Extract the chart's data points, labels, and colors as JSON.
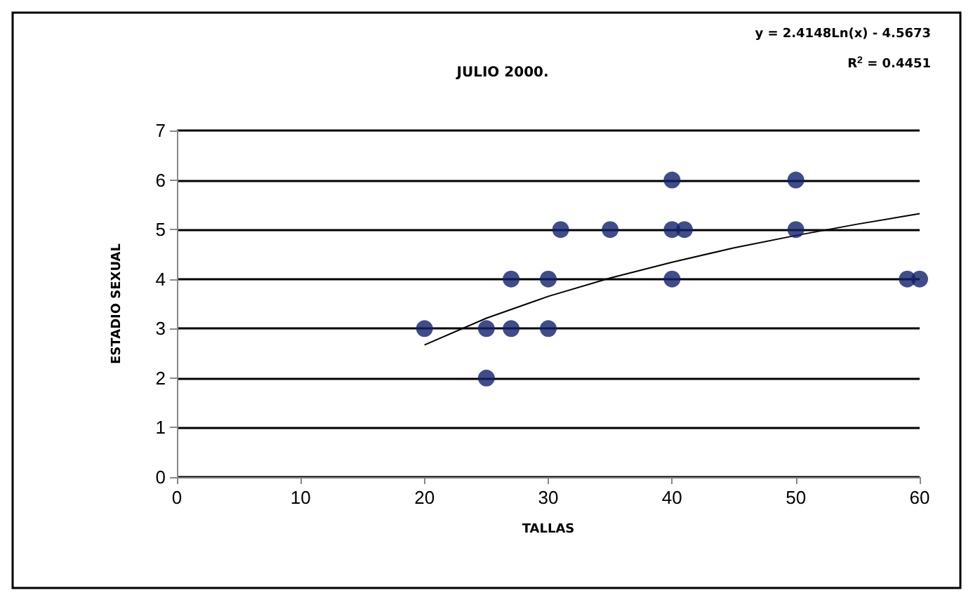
{
  "chart_data": {
    "type": "scatter",
    "title": "JULIO 2000.",
    "xlabel": "TALLAS",
    "ylabel": "ESTADIO SEXUAL",
    "annotations": [
      "y = 2.4148Ln(x) - 4.5673",
      "R$^{2}$ = 0.4451"
    ],
    "series": [
      {
        "color": "#10206a",
        "marker": "circle",
        "x": [
          20,
          25,
          25,
          27,
          27,
          30,
          30,
          31,
          35,
          40,
          40,
          40,
          41,
          50,
          50,
          59,
          60
        ],
        "values": [
          3,
          3,
          2,
          4,
          3,
          4,
          3,
          5,
          5,
          6,
          5,
          4,
          5,
          6,
          5,
          4,
          4
        ]
      },
      {
        "type": "line",
        "color": "#000000",
        "marker": "none",
        "line_style": "solid",
        "x": [
          20,
          25,
          30,
          35,
          40,
          45,
          50,
          55,
          60
        ],
        "values": [
          2.67,
          3.21,
          3.65,
          4.02,
          4.34,
          4.63,
          4.88,
          5.11,
          5.32
        ]
      }
    ],
    "xlim": [
      0,
      60
    ],
    "xticks": [
      0,
      10,
      20,
      30,
      40,
      50,
      60
    ],
    "ylim": [
      0,
      7
    ],
    "yticks": [
      0,
      1,
      2,
      3,
      4,
      5,
      6,
      7
    ],
    "grid": "y"
  }
}
